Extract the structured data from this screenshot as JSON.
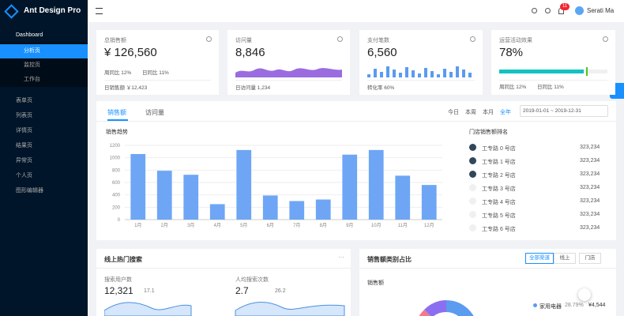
{
  "sidebar": {
    "logo": "Ant Design Pro",
    "dashboard": "Dashboard",
    "submenu": [
      "分析页",
      "监控页",
      "工作台"
    ],
    "menu": [
      "表单页",
      "列表页",
      "详情页",
      "结果页",
      "异常页",
      "个人页",
      "图形编辑器"
    ]
  },
  "header": {
    "notice_count": "11",
    "user": "Serati Ma"
  },
  "stats": [
    {
      "title": "总销售额",
      "value": "¥ 126,560",
      "trend": [
        "周同比 12%",
        "日同比 11%"
      ],
      "footer": "日销售额 ￥12,423"
    },
    {
      "title": "访问量",
      "value": "8,846",
      "footer": "日访问量 1,234"
    },
    {
      "title": "支付笔数",
      "value": "6,560",
      "footer": "转化率 60%"
    },
    {
      "title": "运营活动效果",
      "value": "78%",
      "trend": [
        "周同比 12%",
        "日同比 11%"
      ]
    }
  ],
  "sales": {
    "tabs": [
      "销售额",
      "访问量"
    ],
    "ranges": [
      "今日",
      "本周",
      "本月",
      "全年"
    ],
    "date_range": "2019-01-01 ~ 2019-12-31",
    "chart_title": "销售趋势",
    "ranking_title": "门店销售额排名",
    "ranking": [
      {
        "name": "工专路 0 号店",
        "value": "323,234"
      },
      {
        "name": "工专路 1 号店",
        "value": "323,234"
      },
      {
        "name": "工专路 2 号店",
        "value": "323,234"
      },
      {
        "name": "工专路 3 号店",
        "value": "323,234"
      },
      {
        "name": "工专路 4 号店",
        "value": "323,234"
      },
      {
        "name": "工专路 5 号店",
        "value": "323,234"
      },
      {
        "name": "工专路 6 号店",
        "value": "323,234"
      }
    ],
    "chart": {
      "type": "bar",
      "color": "#6ea6f5",
      "categories": [
        "1月",
        "2月",
        "3月",
        "4月",
        "5月",
        "6月",
        "7月",
        "8月",
        "9月",
        "10月",
        "11月",
        "12月"
      ],
      "values": [
        1060,
        790,
        725,
        250,
        1125,
        390,
        300,
        325,
        1050,
        1125,
        710,
        560
      ],
      "ylim": [
        0,
        1200
      ],
      "yticks": [
        0,
        200,
        400,
        600,
        800,
        1000,
        1200
      ]
    }
  },
  "search": {
    "title": "线上热门搜索",
    "metrics": [
      {
        "label": "搜索用户数",
        "value": "12,321",
        "change": "17.1"
      },
      {
        "label": "人均搜索次数",
        "value": "2.7",
        "change": "26.2"
      }
    ]
  },
  "category": {
    "title": "销售额类别占比",
    "buttons": [
      "全部渠道",
      "线上",
      "门店"
    ],
    "subtitle": "销售额",
    "legend": {
      "name": "家用电器",
      "percent": "28.79%",
      "amount": "¥4,544"
    }
  }
}
